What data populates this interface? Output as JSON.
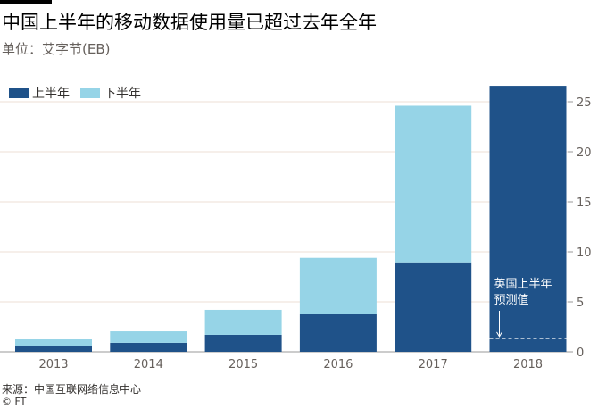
{
  "title": "中国上半年的移动数据使用量已超过去年全年",
  "subtitle": "单位：艾字节(EB)",
  "source": "来源：中国互联网络信息中心",
  "copyright": "© FT",
  "chart_data": {
    "type": "bar",
    "stacked": true,
    "categories": [
      "2013",
      "2014",
      "2015",
      "2016",
      "2017",
      "2018"
    ],
    "series": [
      {
        "name": "上半年",
        "color": "#1f5289",
        "values": [
          0.6,
          0.9,
          1.7,
          3.75,
          8.95,
          26.6
        ]
      },
      {
        "name": "下半年",
        "color": "#96d4e7",
        "values": [
          0.65,
          1.15,
          2.5,
          5.65,
          15.65,
          null
        ]
      }
    ],
    "ylim": [
      0,
      25
    ],
    "yticks": [
      0,
      5,
      10,
      15,
      20,
      25
    ],
    "yaxis_side": "right",
    "grid": true,
    "legend_placement": "top-left",
    "annotation": {
      "text_line1": "英国上半年",
      "text_line2": "预测值",
      "category": "2018",
      "value": 1.35
    }
  }
}
